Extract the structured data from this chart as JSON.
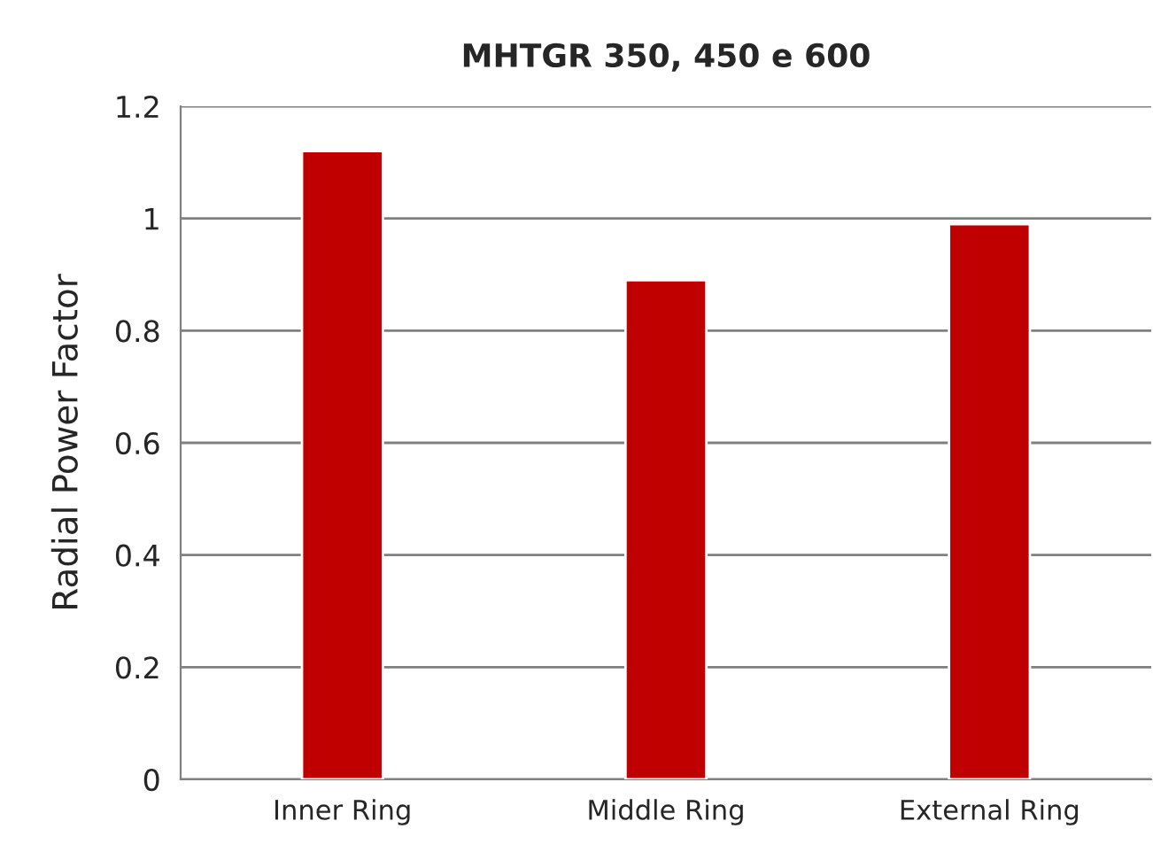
{
  "chart_data": {
    "type": "bar",
    "title": "MHTGR 350, 450 e 600",
    "ylabel": "Radial Power Factor",
    "categories": [
      "Inner Ring",
      "Middle Ring",
      "External Ring"
    ],
    "values": [
      1.12,
      0.89,
      0.99
    ],
    "color": "#c00000",
    "ylim": [
      0,
      1.2
    ],
    "yticks": [
      0,
      0.2,
      0.4,
      0.6,
      0.8,
      1,
      1.2
    ],
    "grid": "y",
    "legend": false
  }
}
